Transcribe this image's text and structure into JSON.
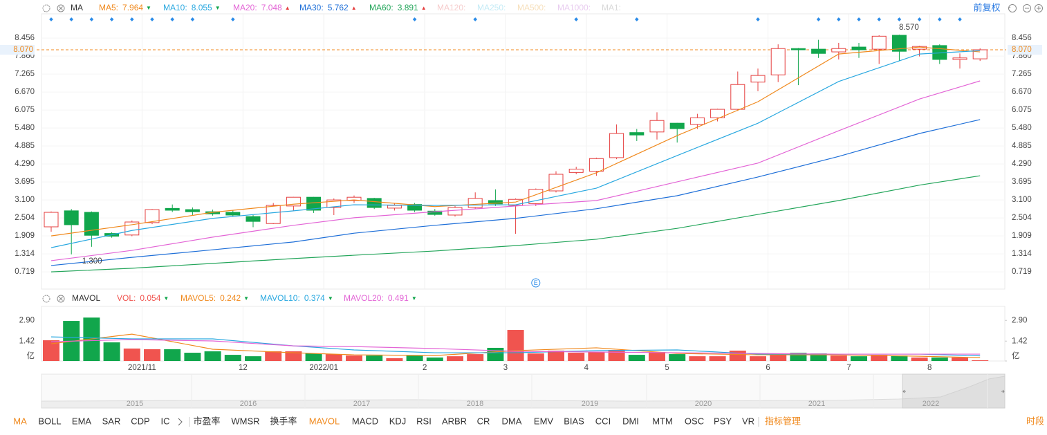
{
  "chart_data": [
    {
      "type": "candlestick",
      "title": "MA",
      "open": [
        2.21,
        2.74,
        2.69,
        1.99,
        1.94,
        2.35,
        2.82,
        2.78,
        2.71,
        2.69,
        2.55,
        2.32,
        2.9,
        3.19,
        2.85,
        3.08,
        3.15,
        2.83,
        2.95,
        2.73,
        2.6,
        2.85,
        3.08,
        2.92,
        2.98,
        3.4,
        4.01,
        4.05,
        4.5,
        5.33,
        5.35,
        5.64,
        5.6,
        5.82,
        6.1,
        7.0,
        7.24,
        8.11,
        8.09,
        8.0,
        8.16,
        8.09,
        8.55,
        8.09,
        8.21,
        7.75,
        7.77
      ],
      "high": [
        2.72,
        2.8,
        2.72,
        2.03,
        2.42,
        2.8,
        2.95,
        2.85,
        2.78,
        2.75,
        2.6,
        3.0,
        3.2,
        3.2,
        3.15,
        3.25,
        3.17,
        3.0,
        3.0,
        2.8,
        2.9,
        3.35,
        3.45,
        3.15,
        3.48,
        4.05,
        4.2,
        4.5,
        5.6,
        5.45,
        6.0,
        5.65,
        5.95,
        6.12,
        7.35,
        7.45,
        8.25,
        8.13,
        8.4,
        8.3,
        8.3,
        8.55,
        8.57,
        8.2,
        8.25,
        7.95,
        8.12
      ],
      "low": [
        2.05,
        1.3,
        1.55,
        1.85,
        1.9,
        2.3,
        2.7,
        2.6,
        2.58,
        2.55,
        2.2,
        2.3,
        2.75,
        2.67,
        2.6,
        3.0,
        2.8,
        2.75,
        2.7,
        2.58,
        2.55,
        2.8,
        2.9,
        1.98,
        2.9,
        3.35,
        3.95,
        3.9,
        4.45,
        5.05,
        5.1,
        5.0,
        5.45,
        5.7,
        6.05,
        6.7,
        7.0,
        6.9,
        7.8,
        7.75,
        7.8,
        7.6,
        7.7,
        7.85,
        7.6,
        7.45,
        7.7
      ],
      "close": [
        2.69,
        2.28,
        1.93,
        1.9,
        2.37,
        2.78,
        2.76,
        2.71,
        2.64,
        2.6,
        2.39,
        2.92,
        3.19,
        2.76,
        3.1,
        3.19,
        2.85,
        2.92,
        2.76,
        2.62,
        2.85,
        3.15,
        2.97,
        3.12,
        3.45,
        3.95,
        4.12,
        4.47,
        5.3,
        5.25,
        5.73,
        5.46,
        5.82,
        6.1,
        6.92,
        7.22,
        8.11,
        8.07,
        7.95,
        8.11,
        8.07,
        8.52,
        8.02,
        8.18,
        7.75,
        7.8,
        8.07
      ],
      "up_color": "#e53f3f",
      "down_color": "#11a64c",
      "ylim": [
        0.15,
        9.26
      ],
      "yticks": [
        8.456,
        {
          "value": 7.86,
          "label": "7.860"
        },
        7.265,
        {
          "value": 6.67,
          "label": "6.670"
        },
        6.075,
        {
          "value": 5.48,
          "label": "5.480"
        },
        4.885,
        {
          "value": 4.29,
          "label": "4.290"
        },
        3.695,
        {
          "value": 3.1,
          "label": "3.100"
        },
        2.504,
        1.909,
        1.314,
        0.719
      ],
      "grid": true,
      "price_line": {
        "value": 8.07,
        "label": "8.070",
        "color": "#f0891d"
      },
      "annotations": [
        {
          "value": 8.57,
          "label": "8.570"
        },
        {
          "value": 1.3,
          "label": "1.300"
        }
      ],
      "event_marker": "E",
      "series": [
        {
          "name": "MA5:",
          "color": "#f0891d",
          "last": 7.964,
          "trend": "▼",
          "x": [
            0,
            4,
            8,
            12,
            15,
            19,
            23,
            27,
            31,
            35,
            39,
            43,
            46
          ],
          "values": [
            1.91,
            2.28,
            2.69,
            2.96,
            3.1,
            2.88,
            3.03,
            4.0,
            5.23,
            6.35,
            7.93,
            8.16,
            8.0
          ]
        },
        {
          "name": "MA10:",
          "color": "#29a8e0",
          "last": 8.055,
          "trend": "▼",
          "x": [
            0,
            4,
            8,
            12,
            15,
            19,
            23,
            27,
            31,
            35,
            39,
            43,
            46
          ],
          "values": [
            1.52,
            2.09,
            2.49,
            2.74,
            2.94,
            2.92,
            2.94,
            3.49,
            4.57,
            5.64,
            7.02,
            7.93,
            8.04
          ]
        },
        {
          "name": "MA20:",
          "color": "#e365d6",
          "last": 7.048,
          "trend": "▲",
          "x": [
            0,
            4,
            8,
            12,
            15,
            19,
            23,
            27,
            31,
            35,
            39,
            43,
            46
          ],
          "values": [
            1.09,
            1.43,
            1.87,
            2.26,
            2.51,
            2.71,
            2.9,
            3.08,
            3.7,
            4.32,
            5.39,
            6.44,
            7.04
          ]
        },
        {
          "name": "MA30:",
          "color": "#1e6fd8",
          "last": 5.762,
          "trend": "▲",
          "x": [
            0,
            4,
            8,
            12,
            15,
            19,
            23,
            27,
            31,
            35,
            39,
            43,
            46
          ],
          "values": [
            0.93,
            1.2,
            1.45,
            1.71,
            2.0,
            2.26,
            2.49,
            2.81,
            3.24,
            3.86,
            4.54,
            5.3,
            5.76
          ]
        },
        {
          "name": "MA60:",
          "color": "#23a55a",
          "last": 3.891,
          "trend": "▲",
          "x": [
            0,
            4,
            8,
            12,
            15,
            19,
            23,
            27,
            31,
            35,
            39,
            43,
            46
          ],
          "values": [
            0.72,
            0.84,
            1.0,
            1.16,
            1.27,
            1.41,
            1.59,
            1.8,
            2.16,
            2.62,
            3.08,
            3.59,
            3.9
          ]
        }
      ],
      "inactive_series": [
        {
          "name": "MA120:",
          "color": "#f6cccc"
        },
        {
          "name": "MA250:",
          "color": "#c4ebf6"
        },
        {
          "name": "MA500:",
          "color": "#f7e0bc"
        },
        {
          "name": "MA1000:",
          "color": "#e9cdf0"
        },
        {
          "name": "MA1:",
          "color": "#d9d9d9"
        }
      ]
    },
    {
      "type": "bar",
      "title": "MAVOL",
      "name": "VOL:",
      "color": "#f0544f",
      "last": 0.054,
      "trend": "▼",
      "categories": [
        null,
        null,
        null,
        null,
        null,
        "2021/11",
        null,
        null,
        null,
        null,
        "12",
        null,
        null,
        null,
        "2022/01",
        null,
        null,
        null,
        null,
        "2",
        null,
        null,
        null,
        "3",
        null,
        null,
        null,
        "4",
        null,
        null,
        null,
        "5",
        null,
        null,
        null,
        null,
        "6",
        null,
        null,
        null,
        "7",
        null,
        null,
        null,
        "8",
        null,
        null
      ],
      "values": [
        1.48,
        2.86,
        3.1,
        1.33,
        0.89,
        0.84,
        0.84,
        0.59,
        0.69,
        0.44,
        0.34,
        0.69,
        0.69,
        0.54,
        0.49,
        0.39,
        0.39,
        0.2,
        0.39,
        0.25,
        0.34,
        0.49,
        0.94,
        2.22,
        0.54,
        0.74,
        0.59,
        0.64,
        0.79,
        0.44,
        0.64,
        0.49,
        0.34,
        0.34,
        0.74,
        0.34,
        0.49,
        0.59,
        0.54,
        0.39,
        0.34,
        0.44,
        0.39,
        0.25,
        0.25,
        0.25,
        0.054
      ],
      "ylim": [
        0,
        3.9
      ],
      "yticks": [
        {
          "value": 0,
          "label": "亿"
        },
        1.42,
        {
          "value": 2.9,
          "label": "2.90"
        }
      ],
      "series": [
        {
          "name": "MAVOL5:",
          "color": "#f0891d",
          "last": 0.242,
          "trend": "▼",
          "x": [
            0,
            4,
            8,
            12,
            15,
            19,
            23,
            27,
            31,
            35,
            39,
            43,
            46
          ],
          "values": [
            1.23,
            1.92,
            0.84,
            0.59,
            0.44,
            0.39,
            0.74,
            0.94,
            0.54,
            0.44,
            0.44,
            0.34,
            0.24
          ]
        },
        {
          "name": "MAVOL10:",
          "color": "#29a8e0",
          "last": 0.374,
          "trend": "▼",
          "x": [
            0,
            4,
            8,
            12,
            15,
            19,
            23,
            27,
            31,
            35,
            39,
            43,
            46
          ],
          "values": [
            1.72,
            1.58,
            1.58,
            1.08,
            0.79,
            0.59,
            0.59,
            0.74,
            0.79,
            0.49,
            0.49,
            0.49,
            0.37
          ]
        },
        {
          "name": "MAVOL20:",
          "color": "#e365d6",
          "last": 0.491,
          "trend": "▼",
          "x": [
            0,
            4,
            8,
            12,
            15,
            19,
            23,
            27,
            31,
            35,
            39,
            43,
            46
          ],
          "values": [
            1.38,
            1.53,
            1.43,
            1.08,
            1.03,
            0.89,
            0.69,
            0.64,
            0.59,
            0.54,
            0.49,
            0.49,
            0.49
          ]
        }
      ]
    }
  ],
  "ui": {
    "adjust_label": "前复权",
    "navigator_years": [
      "2015",
      "2016",
      "2017",
      "2018",
      "2019",
      "2020",
      "2021",
      "2022"
    ],
    "indicator_tabs": [
      {
        "label": "MA",
        "active": true
      },
      {
        "label": "BOLL",
        "active": false
      },
      {
        "label": "EMA",
        "active": false
      },
      {
        "label": "SAR",
        "active": false
      },
      {
        "label": "CDP",
        "active": false
      },
      {
        "label": "IC",
        "active": false
      },
      {
        "label": "市盈率",
        "active": false
      },
      {
        "label": "WMSR",
        "active": false
      },
      {
        "label": "换手率",
        "active": false
      },
      {
        "label": "MAVOL",
        "active": true
      },
      {
        "label": "MACD",
        "active": false
      },
      {
        "label": "KDJ",
        "active": false
      },
      {
        "label": "RSI",
        "active": false
      },
      {
        "label": "ARBR",
        "active": false
      },
      {
        "label": "CR",
        "active": false
      },
      {
        "label": "DMA",
        "active": false
      },
      {
        "label": "EMV",
        "active": false
      },
      {
        "label": "BIAS",
        "active": false
      },
      {
        "label": "CCI",
        "active": false
      },
      {
        "label": "DMI",
        "active": false
      },
      {
        "label": "MTM",
        "active": false
      },
      {
        "label": "OSC",
        "active": false
      },
      {
        "label": "PSY",
        "active": false
      },
      {
        "label": "VR",
        "active": false
      }
    ],
    "manage_label": "指标管理",
    "period_label": "时段"
  }
}
